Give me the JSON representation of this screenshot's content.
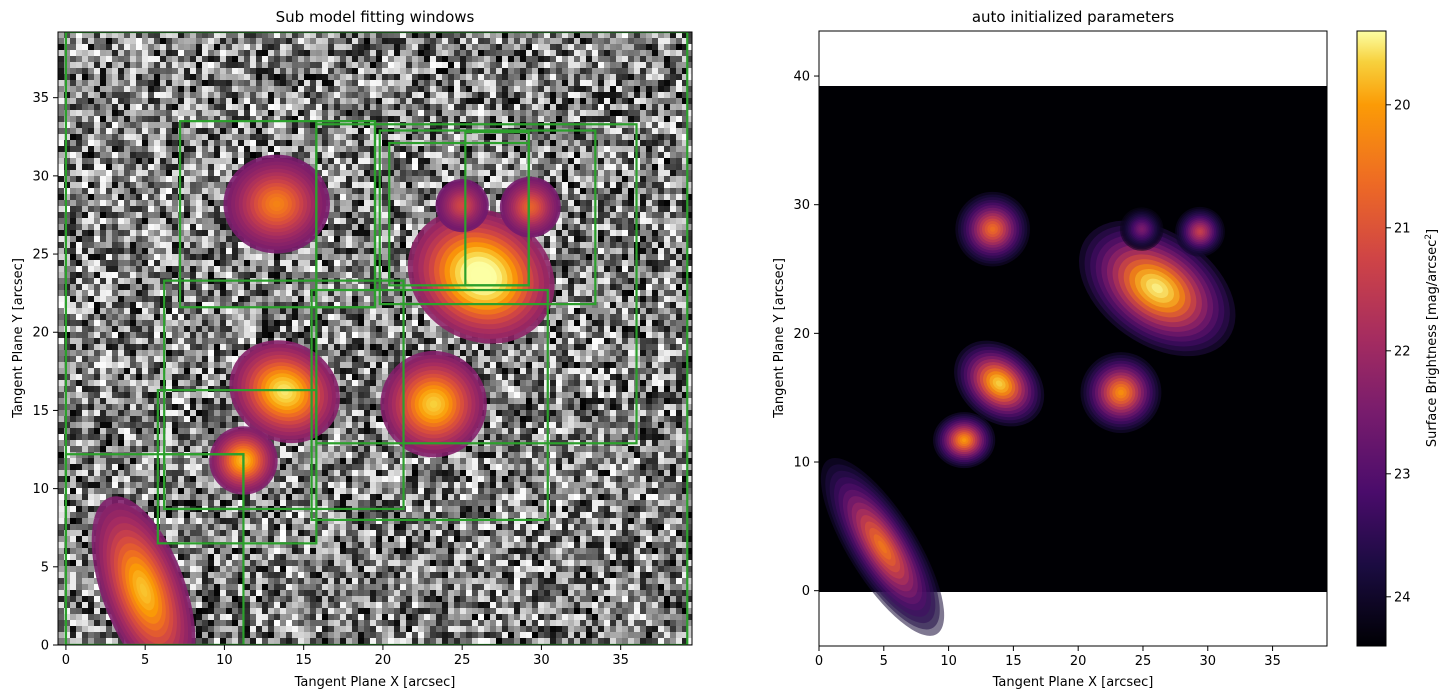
{
  "chart_data": [
    {
      "type": "heatmap",
      "title": "Sub model fitting windows",
      "xlabel": "Tangent Plane X [arcsec]",
      "ylabel": "Tangent Plane Y [arcsec]",
      "xlim": [
        -0.5,
        39.5
      ],
      "ylim": [
        0,
        39.2
      ],
      "xticks": [
        0,
        5,
        10,
        15,
        20,
        25,
        30,
        35
      ],
      "yticks": [
        0,
        5,
        10,
        15,
        20,
        25,
        30,
        35
      ],
      "colormap_background": "grayscale noise",
      "window_color": "#2ca02c",
      "sources": [
        {
          "x": 4.9,
          "y": 3.5,
          "sx": 1.1,
          "sy": 2.6,
          "angle": -20,
          "peak": 0.72
        },
        {
          "x": 11.2,
          "y": 11.8,
          "sx": 0.9,
          "sy": 0.9,
          "angle": 0,
          "peak": 0.7
        },
        {
          "x": 13.8,
          "y": 16.2,
          "sx": 1.5,
          "sy": 1.3,
          "angle": 30,
          "peak": 0.82
        },
        {
          "x": 13.3,
          "y": 28.2,
          "sx": 1.4,
          "sy": 1.3,
          "angle": 0,
          "peak": 0.55
        },
        {
          "x": 23.2,
          "y": 15.4,
          "sx": 1.4,
          "sy": 1.4,
          "angle": 0,
          "peak": 0.75
        },
        {
          "x": 26.2,
          "y": 23.6,
          "sx": 2.0,
          "sy": 1.7,
          "angle": 30,
          "peak": 1.0
        },
        {
          "x": 29.3,
          "y": 28.0,
          "sx": 0.8,
          "sy": 0.8,
          "angle": 0,
          "peak": 0.45
        },
        {
          "x": 25.0,
          "y": 28.1,
          "sx": 0.7,
          "sy": 0.7,
          "angle": 0,
          "peak": 0.35
        }
      ],
      "windows": [
        {
          "x0": 0.0,
          "x1": 39.2,
          "y0": 0.0,
          "y1": 39.2
        },
        {
          "x0": 0.0,
          "x1": 11.2,
          "y0": 0.0,
          "y1": 12.2
        },
        {
          "x0": 5.8,
          "x1": 15.8,
          "y0": 6.5,
          "y1": 16.3
        },
        {
          "x0": 6.2,
          "x1": 11.2,
          "y0": 8.7,
          "y1": 12.2
        },
        {
          "x0": 6.2,
          "x1": 21.3,
          "y0": 8.7,
          "y1": 23.3
        },
        {
          "x0": 7.2,
          "x1": 19.5,
          "y0": 21.6,
          "y1": 33.5
        },
        {
          "x0": 15.5,
          "x1": 30.4,
          "y0": 8.0,
          "y1": 22.7
        },
        {
          "x0": 15.8,
          "x1": 36.0,
          "y0": 12.9,
          "y1": 33.3
        },
        {
          "x0": 19.8,
          "x1": 33.4,
          "y0": 21.8,
          "y1": 32.9
        },
        {
          "x0": 20.4,
          "x1": 29.2,
          "y0": 23.0,
          "y1": 32.1
        },
        {
          "x0": 25.2,
          "x1": 29.2,
          "y0": 23.0,
          "y1": 32.8
        },
        {
          "x0": 15.8,
          "x1": 19.5,
          "y0": 21.6,
          "y1": 33.5
        }
      ]
    },
    {
      "type": "heatmap",
      "title": "auto initialized parameters",
      "xlabel": "Tangent Plane X [arcsec]",
      "ylabel": "Tangent Plane Y [arcsec]",
      "xlim": [
        0,
        39.2
      ],
      "ylim": [
        -4.3,
        43.5
      ],
      "image_extent": {
        "x": [
          0,
          39.2
        ],
        "y": [
          0,
          39.2
        ]
      },
      "xticks": [
        0,
        5,
        10,
        15,
        20,
        25,
        30,
        35
      ],
      "yticks": [
        0,
        10,
        20,
        30,
        40
      ],
      "colormap": "inferno",
      "colorbar": {
        "label": "Surface Brightness [mag/arcsec",
        "label_superscript": "2",
        "label_close": "]",
        "range": [
          24.4,
          19.4
        ],
        "ticks": [
          20,
          21,
          22,
          23,
          24
        ]
      },
      "sources": [
        {
          "x": 4.9,
          "y": 3.4,
          "sx": 1.1,
          "sy": 3.3,
          "angle": -32,
          "peak": 0.72
        },
        {
          "x": 11.2,
          "y": 11.7,
          "sx": 1.0,
          "sy": 0.9,
          "angle": 0,
          "peak": 0.8
        },
        {
          "x": 13.9,
          "y": 16.1,
          "sx": 1.6,
          "sy": 1.2,
          "angle": 40,
          "peak": 0.92
        },
        {
          "x": 13.4,
          "y": 28.1,
          "sx": 1.2,
          "sy": 1.2,
          "angle": 0,
          "peak": 0.7
        },
        {
          "x": 23.3,
          "y": 15.4,
          "sx": 1.3,
          "sy": 1.3,
          "angle": 0,
          "peak": 0.78
        },
        {
          "x": 26.1,
          "y": 23.5,
          "sx": 2.8,
          "sy": 1.8,
          "angle": 35,
          "peak": 1.0
        },
        {
          "x": 29.4,
          "y": 27.9,
          "sx": 0.8,
          "sy": 0.8,
          "angle": 0,
          "peak": 0.55
        },
        {
          "x": 24.9,
          "y": 28.1,
          "sx": 0.7,
          "sy": 0.7,
          "angle": 0,
          "peak": 0.35
        }
      ]
    }
  ]
}
